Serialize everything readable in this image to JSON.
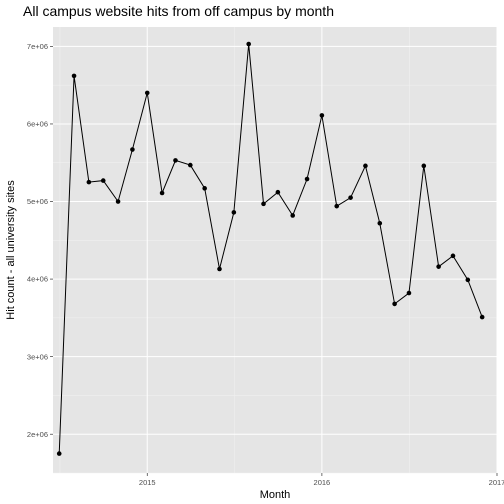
{
  "chart_data": {
    "type": "line",
    "title": "All campus website hits from off campus by month",
    "xlabel": "Month",
    "ylabel": "Hit count - all university sites",
    "x_scale": "date",
    "xlim": [
      "2014-06-18",
      "2017-01-01"
    ],
    "ylim": [
      1500000,
      7250000
    ],
    "x_ticks": [
      {
        "value": "2015-01-01",
        "label": "2015"
      },
      {
        "value": "2016-01-01",
        "label": "2016"
      },
      {
        "value": "2017-01-01",
        "label": "2017"
      }
    ],
    "y_ticks": [
      {
        "value": 2000000,
        "label": "2e+06"
      },
      {
        "value": 3000000,
        "label": "3e+06"
      },
      {
        "value": 4000000,
        "label": "4e+06"
      },
      {
        "value": 5000000,
        "label": "5e+06"
      },
      {
        "value": 6000000,
        "label": "6e+06"
      },
      {
        "value": 7000000,
        "label": "7e+06"
      }
    ],
    "grid": true,
    "background": "#e5e5e5",
    "line_color": "#000000",
    "series": [
      {
        "x": [
          "2014-07-01",
          "2014-08-01",
          "2014-09-01",
          "2014-10-01",
          "2014-11-01",
          "2014-12-01",
          "2015-01-01",
          "2015-02-01",
          "2015-03-01",
          "2015-04-01",
          "2015-05-01",
          "2015-06-01",
          "2015-07-01",
          "2015-08-01",
          "2015-09-01",
          "2015-10-01",
          "2015-11-01",
          "2015-12-01",
          "2016-01-01",
          "2016-02-01",
          "2016-03-01",
          "2016-04-01",
          "2016-05-01",
          "2016-06-01",
          "2016-07-01",
          "2016-08-01",
          "2016-09-01",
          "2016-10-01",
          "2016-11-01",
          "2016-12-01"
        ],
        "values": [
          1750000,
          6620000,
          5250000,
          5270000,
          5000000,
          5670000,
          6400000,
          5110000,
          5530000,
          5470000,
          5170000,
          4130000,
          4860000,
          7030000,
          4970000,
          5120000,
          4820000,
          5290000,
          6110000,
          4940000,
          5050000,
          5460000,
          4720000,
          3680000,
          3820000,
          5460000,
          4160000,
          4300000,
          3990000,
          3510000
        ]
      }
    ]
  }
}
